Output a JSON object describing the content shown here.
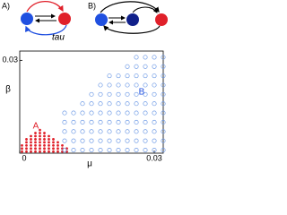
{
  "diagram": {
    "panels": [
      {
        "label": "A)",
        "note": "tau"
      },
      {
        "label": "B)"
      }
    ]
  },
  "chart_data": {
    "type": "scatter",
    "x_label": "μ",
    "y_label": "β",
    "xlim": [
      0,
      0.032
    ],
    "ylim": [
      0,
      0.033
    ],
    "xticks": [
      0,
      0.03
    ],
    "yticks": [
      0.03
    ],
    "series": [
      {
        "name": "A",
        "color": "#e0202a",
        "x": [
          0.0005,
          0.0005,
          0.0005,
          0.0015,
          0.0015,
          0.0015,
          0.0015,
          0.0015,
          0.0025,
          0.0025,
          0.0025,
          0.0025,
          0.0025,
          0.0025,
          0.0035,
          0.0035,
          0.0035,
          0.0035,
          0.0035,
          0.0035,
          0.0035,
          0.0045,
          0.0045,
          0.0045,
          0.0045,
          0.0045,
          0.0045,
          0.0045,
          0.0045,
          0.0055,
          0.0055,
          0.0055,
          0.0055,
          0.0055,
          0.0055,
          0.0055,
          0.0065,
          0.0065,
          0.0065,
          0.0065,
          0.0065,
          0.0065,
          0.0075,
          0.0075,
          0.0075,
          0.0075,
          0.0075,
          0.0085,
          0.0085,
          0.0085,
          0.0085,
          0.0095,
          0.0095,
          0.0095,
          0.0105,
          0.0105
        ],
        "y": [
          0.0005,
          0.0015,
          0.0025,
          0.0005,
          0.0015,
          0.0025,
          0.0035,
          0.0045,
          0.0005,
          0.0015,
          0.0025,
          0.0035,
          0.0045,
          0.0055,
          0.0005,
          0.0015,
          0.0025,
          0.0035,
          0.0045,
          0.0055,
          0.0065,
          0.0005,
          0.0015,
          0.0025,
          0.0035,
          0.0045,
          0.0055,
          0.0065,
          0.0075,
          0.0005,
          0.0015,
          0.0025,
          0.0035,
          0.0045,
          0.0055,
          0.0065,
          0.0005,
          0.0015,
          0.0025,
          0.0035,
          0.0045,
          0.0055,
          0.0005,
          0.0015,
          0.0025,
          0.0035,
          0.0045,
          0.0005,
          0.0015,
          0.0025,
          0.0035,
          0.0005,
          0.0015,
          0.0025,
          0.0005,
          0.0015
        ]
      },
      {
        "name": "B",
        "color": "#6f9be6",
        "x": [
          0.01,
          0.01,
          0.01,
          0.01,
          0.01,
          0.012,
          0.012,
          0.012,
          0.012,
          0.012,
          0.014,
          0.014,
          0.014,
          0.014,
          0.014,
          0.014,
          0.016,
          0.016,
          0.016,
          0.016,
          0.016,
          0.016,
          0.016,
          0.018,
          0.018,
          0.018,
          0.018,
          0.018,
          0.018,
          0.018,
          0.018,
          0.02,
          0.02,
          0.02,
          0.02,
          0.02,
          0.02,
          0.02,
          0.02,
          0.02,
          0.022,
          0.022,
          0.022,
          0.022,
          0.022,
          0.022,
          0.022,
          0.022,
          0.022,
          0.024,
          0.024,
          0.024,
          0.024,
          0.024,
          0.024,
          0.024,
          0.024,
          0.024,
          0.024,
          0.026,
          0.026,
          0.026,
          0.026,
          0.026,
          0.026,
          0.026,
          0.026,
          0.026,
          0.026,
          0.026,
          0.028,
          0.028,
          0.028,
          0.028,
          0.028,
          0.028,
          0.028,
          0.028,
          0.028,
          0.028,
          0.028,
          0.03,
          0.03,
          0.03,
          0.03,
          0.03,
          0.03,
          0.03,
          0.03,
          0.03,
          0.03,
          0.03,
          0.032,
          0.032,
          0.032,
          0.032,
          0.032,
          0.032,
          0.032,
          0.032,
          0.032,
          0.032,
          0.032
        ],
        "y": [
          0.001,
          0.004,
          0.007,
          0.01,
          0.013,
          0.001,
          0.004,
          0.007,
          0.01,
          0.013,
          0.001,
          0.004,
          0.007,
          0.01,
          0.013,
          0.016,
          0.001,
          0.004,
          0.007,
          0.01,
          0.013,
          0.016,
          0.019,
          0.001,
          0.004,
          0.007,
          0.01,
          0.013,
          0.016,
          0.019,
          0.022,
          0.001,
          0.004,
          0.007,
          0.01,
          0.013,
          0.016,
          0.019,
          0.022,
          0.025,
          0.001,
          0.004,
          0.007,
          0.01,
          0.013,
          0.016,
          0.019,
          0.022,
          0.025,
          0.001,
          0.004,
          0.007,
          0.01,
          0.013,
          0.016,
          0.019,
          0.022,
          0.025,
          0.028,
          0.001,
          0.004,
          0.007,
          0.01,
          0.013,
          0.016,
          0.019,
          0.022,
          0.025,
          0.028,
          0.031,
          0.001,
          0.004,
          0.007,
          0.01,
          0.013,
          0.016,
          0.019,
          0.022,
          0.025,
          0.028,
          0.031,
          0.001,
          0.004,
          0.007,
          0.01,
          0.013,
          0.016,
          0.019,
          0.022,
          0.025,
          0.028,
          0.031,
          0.001,
          0.004,
          0.007,
          0.01,
          0.013,
          0.016,
          0.019,
          0.022,
          0.025,
          0.028,
          0.031
        ]
      }
    ]
  }
}
